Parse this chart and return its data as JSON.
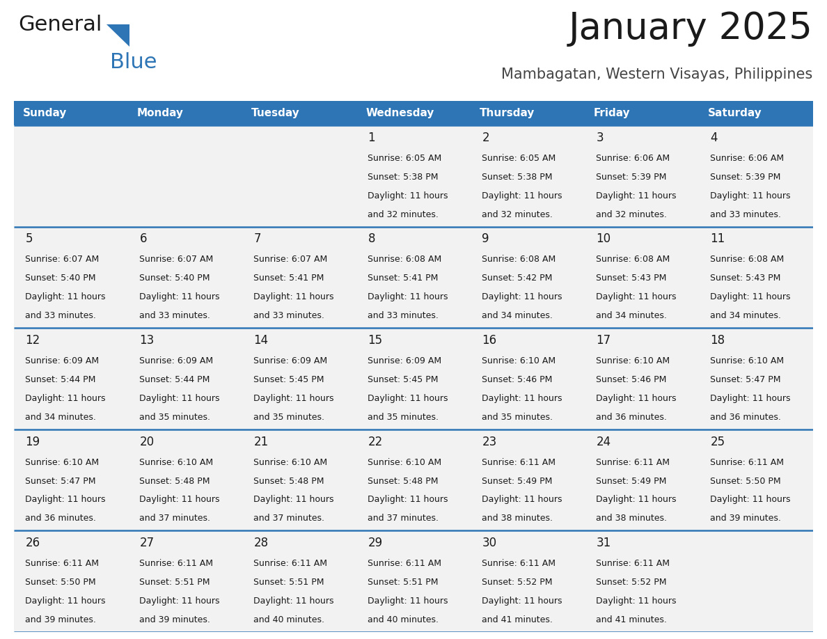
{
  "title": "January 2025",
  "subtitle": "Mambagatan, Western Visayas, Philippines",
  "header_bg": "#2E75B6",
  "header_text_color": "#FFFFFF",
  "day_names": [
    "Sunday",
    "Monday",
    "Tuesday",
    "Wednesday",
    "Thursday",
    "Friday",
    "Saturday"
  ],
  "bg_color": "#FFFFFF",
  "cell_bg": "#F2F2F2",
  "row_line_color": "#2E75B6",
  "text_color": "#1a1a1a",
  "days": [
    {
      "day": 1,
      "col": 3,
      "row": 0,
      "sunrise": "6:05 AM",
      "sunset": "5:38 PM",
      "daylight_h": "11 hours",
      "daylight_m": "and 32 minutes."
    },
    {
      "day": 2,
      "col": 4,
      "row": 0,
      "sunrise": "6:05 AM",
      "sunset": "5:38 PM",
      "daylight_h": "11 hours",
      "daylight_m": "and 32 minutes."
    },
    {
      "day": 3,
      "col": 5,
      "row": 0,
      "sunrise": "6:06 AM",
      "sunset": "5:39 PM",
      "daylight_h": "11 hours",
      "daylight_m": "and 32 minutes."
    },
    {
      "day": 4,
      "col": 6,
      "row": 0,
      "sunrise": "6:06 AM",
      "sunset": "5:39 PM",
      "daylight_h": "11 hours",
      "daylight_m": "and 33 minutes."
    },
    {
      "day": 5,
      "col": 0,
      "row": 1,
      "sunrise": "6:07 AM",
      "sunset": "5:40 PM",
      "daylight_h": "11 hours",
      "daylight_m": "and 33 minutes."
    },
    {
      "day": 6,
      "col": 1,
      "row": 1,
      "sunrise": "6:07 AM",
      "sunset": "5:40 PM",
      "daylight_h": "11 hours",
      "daylight_m": "and 33 minutes."
    },
    {
      "day": 7,
      "col": 2,
      "row": 1,
      "sunrise": "6:07 AM",
      "sunset": "5:41 PM",
      "daylight_h": "11 hours",
      "daylight_m": "and 33 minutes."
    },
    {
      "day": 8,
      "col": 3,
      "row": 1,
      "sunrise": "6:08 AM",
      "sunset": "5:41 PM",
      "daylight_h": "11 hours",
      "daylight_m": "and 33 minutes."
    },
    {
      "day": 9,
      "col": 4,
      "row": 1,
      "sunrise": "6:08 AM",
      "sunset": "5:42 PM",
      "daylight_h": "11 hours",
      "daylight_m": "and 34 minutes."
    },
    {
      "day": 10,
      "col": 5,
      "row": 1,
      "sunrise": "6:08 AM",
      "sunset": "5:43 PM",
      "daylight_h": "11 hours",
      "daylight_m": "and 34 minutes."
    },
    {
      "day": 11,
      "col": 6,
      "row": 1,
      "sunrise": "6:08 AM",
      "sunset": "5:43 PM",
      "daylight_h": "11 hours",
      "daylight_m": "and 34 minutes."
    },
    {
      "day": 12,
      "col": 0,
      "row": 2,
      "sunrise": "6:09 AM",
      "sunset": "5:44 PM",
      "daylight_h": "11 hours",
      "daylight_m": "and 34 minutes."
    },
    {
      "day": 13,
      "col": 1,
      "row": 2,
      "sunrise": "6:09 AM",
      "sunset": "5:44 PM",
      "daylight_h": "11 hours",
      "daylight_m": "and 35 minutes."
    },
    {
      "day": 14,
      "col": 2,
      "row": 2,
      "sunrise": "6:09 AM",
      "sunset": "5:45 PM",
      "daylight_h": "11 hours",
      "daylight_m": "and 35 minutes."
    },
    {
      "day": 15,
      "col": 3,
      "row": 2,
      "sunrise": "6:09 AM",
      "sunset": "5:45 PM",
      "daylight_h": "11 hours",
      "daylight_m": "and 35 minutes."
    },
    {
      "day": 16,
      "col": 4,
      "row": 2,
      "sunrise": "6:10 AM",
      "sunset": "5:46 PM",
      "daylight_h": "11 hours",
      "daylight_m": "and 35 minutes."
    },
    {
      "day": 17,
      "col": 5,
      "row": 2,
      "sunrise": "6:10 AM",
      "sunset": "5:46 PM",
      "daylight_h": "11 hours",
      "daylight_m": "and 36 minutes."
    },
    {
      "day": 18,
      "col": 6,
      "row": 2,
      "sunrise": "6:10 AM",
      "sunset": "5:47 PM",
      "daylight_h": "11 hours",
      "daylight_m": "and 36 minutes."
    },
    {
      "day": 19,
      "col": 0,
      "row": 3,
      "sunrise": "6:10 AM",
      "sunset": "5:47 PM",
      "daylight_h": "11 hours",
      "daylight_m": "and 36 minutes."
    },
    {
      "day": 20,
      "col": 1,
      "row": 3,
      "sunrise": "6:10 AM",
      "sunset": "5:48 PM",
      "daylight_h": "11 hours",
      "daylight_m": "and 37 minutes."
    },
    {
      "day": 21,
      "col": 2,
      "row": 3,
      "sunrise": "6:10 AM",
      "sunset": "5:48 PM",
      "daylight_h": "11 hours",
      "daylight_m": "and 37 minutes."
    },
    {
      "day": 22,
      "col": 3,
      "row": 3,
      "sunrise": "6:10 AM",
      "sunset": "5:48 PM",
      "daylight_h": "11 hours",
      "daylight_m": "and 37 minutes."
    },
    {
      "day": 23,
      "col": 4,
      "row": 3,
      "sunrise": "6:11 AM",
      "sunset": "5:49 PM",
      "daylight_h": "11 hours",
      "daylight_m": "and 38 minutes."
    },
    {
      "day": 24,
      "col": 5,
      "row": 3,
      "sunrise": "6:11 AM",
      "sunset": "5:49 PM",
      "daylight_h": "11 hours",
      "daylight_m": "and 38 minutes."
    },
    {
      "day": 25,
      "col": 6,
      "row": 3,
      "sunrise": "6:11 AM",
      "sunset": "5:50 PM",
      "daylight_h": "11 hours",
      "daylight_m": "and 39 minutes."
    },
    {
      "day": 26,
      "col": 0,
      "row": 4,
      "sunrise": "6:11 AM",
      "sunset": "5:50 PM",
      "daylight_h": "11 hours",
      "daylight_m": "and 39 minutes."
    },
    {
      "day": 27,
      "col": 1,
      "row": 4,
      "sunrise": "6:11 AM",
      "sunset": "5:51 PM",
      "daylight_h": "11 hours",
      "daylight_m": "and 39 minutes."
    },
    {
      "day": 28,
      "col": 2,
      "row": 4,
      "sunrise": "6:11 AM",
      "sunset": "5:51 PM",
      "daylight_h": "11 hours",
      "daylight_m": "and 40 minutes."
    },
    {
      "day": 29,
      "col": 3,
      "row": 4,
      "sunrise": "6:11 AM",
      "sunset": "5:51 PM",
      "daylight_h": "11 hours",
      "daylight_m": "and 40 minutes."
    },
    {
      "day": 30,
      "col": 4,
      "row": 4,
      "sunrise": "6:11 AM",
      "sunset": "5:52 PM",
      "daylight_h": "11 hours",
      "daylight_m": "and 41 minutes."
    },
    {
      "day": 31,
      "col": 5,
      "row": 4,
      "sunrise": "6:11 AM",
      "sunset": "5:52 PM",
      "daylight_h": "11 hours",
      "daylight_m": "and 41 minutes."
    }
  ],
  "num_rows": 5,
  "num_cols": 7,
  "logo_triangle_color": "#2E75B6",
  "logo_black_color": "#1a1a1a"
}
